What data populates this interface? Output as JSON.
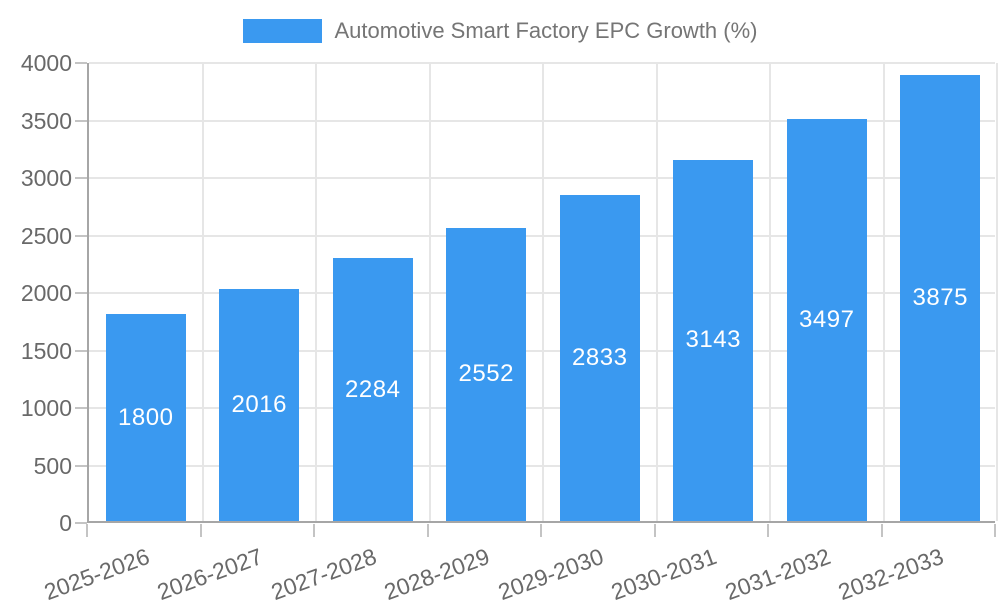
{
  "chart_data": {
    "type": "bar",
    "legend": "Automotive Smart Factory EPC Growth (%)",
    "legend_position": "top",
    "categories": [
      "2025-2026",
      "2026-2027",
      "2027-2028",
      "2028-2029",
      "2029-2030",
      "2030-2031",
      "2031-2032",
      "2032-2033"
    ],
    "values": [
      1800,
      2016,
      2284,
      2552,
      2833,
      3143,
      3497,
      3875
    ],
    "value_labels_inside_bars": true,
    "xlabel": "",
    "ylabel": "",
    "ylim": [
      0,
      4000
    ],
    "yticks": [
      0,
      500,
      1000,
      1500,
      2000,
      2500,
      3000,
      3500,
      4000
    ],
    "grid": true,
    "colors": {
      "bar": "#3a99f0",
      "value_label": "#ffffff",
      "axis_line": "#a6a6a6",
      "gridline": "#e6e6e6",
      "tick_mark": "#c4c4c4",
      "axis_text": "#696969",
      "legend_text": "#757575",
      "background": "#ffffff"
    }
  }
}
